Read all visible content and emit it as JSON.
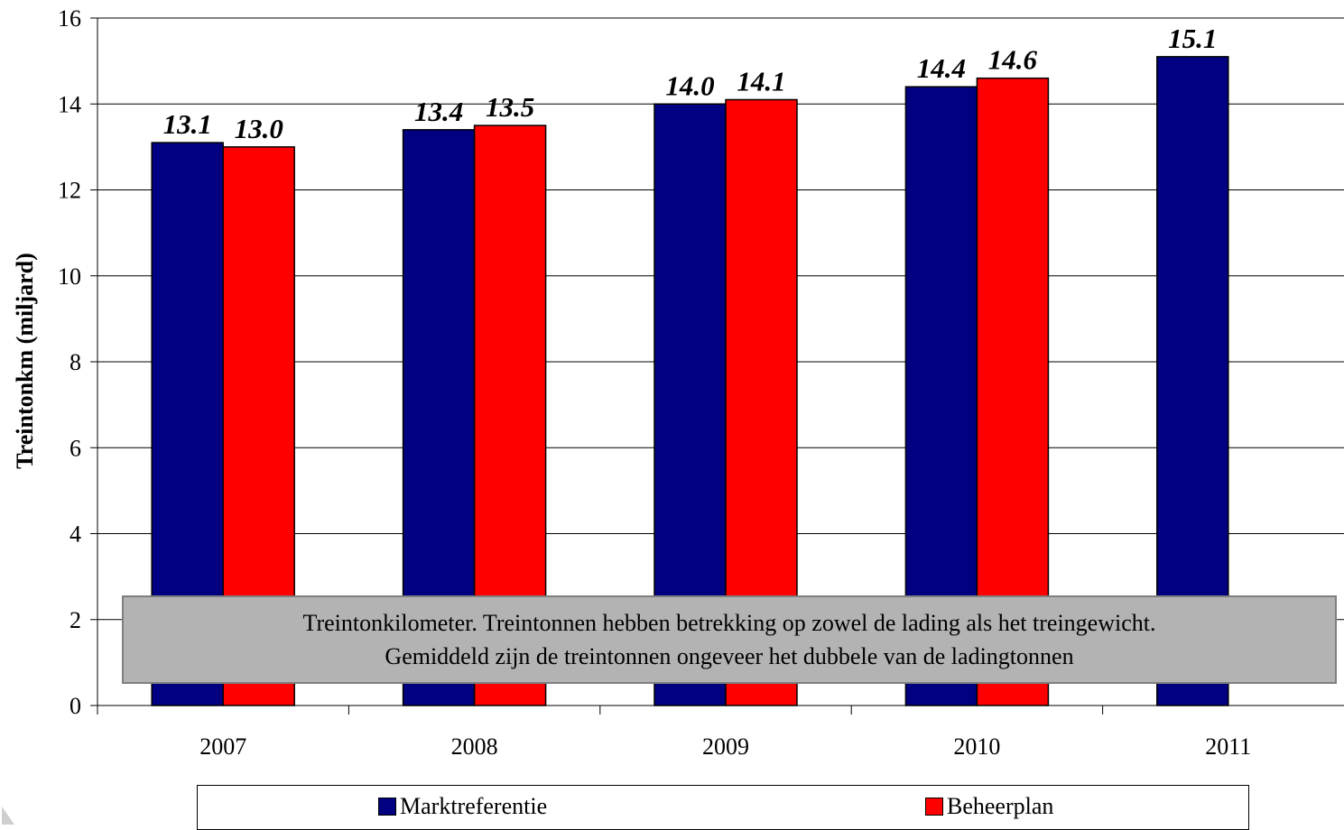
{
  "chart_data": {
    "type": "bar",
    "categories": [
      "2007",
      "2008",
      "2009",
      "2010",
      "2011"
    ],
    "series": [
      {
        "name": "Marktreferentie",
        "color": "#000080",
        "values": [
          13.1,
          13.4,
          14.0,
          14.4,
          15.1
        ],
        "labels": [
          "13.1",
          "13.4",
          "14.0",
          "14.4",
          "15.1"
        ]
      },
      {
        "name": "Beheerplan",
        "color": "#ff0000",
        "values": [
          13.0,
          13.5,
          14.1,
          14.6,
          null
        ],
        "labels": [
          "13.0",
          "13.5",
          "14.1",
          "14.6",
          ""
        ]
      }
    ],
    "ylabel": "Treintonkm (miljard)",
    "xlabel": "",
    "ylim": [
      0,
      16
    ],
    "yticks": [
      "0",
      "2",
      "4",
      "6",
      "8",
      "10",
      "12",
      "14",
      "16"
    ],
    "grid": true,
    "legend": "bottom"
  },
  "note": {
    "line1": "Treintonkilometer. Treintonnen hebben betrekking op zowel de lading als het treingewicht.",
    "line2": "Gemiddeld zijn de treintonnen ongeveer het dubbele van de ladingtonnen"
  },
  "legend": {
    "marktreferentie": "Marktreferentie",
    "beheerplan": "Beheerplan"
  }
}
